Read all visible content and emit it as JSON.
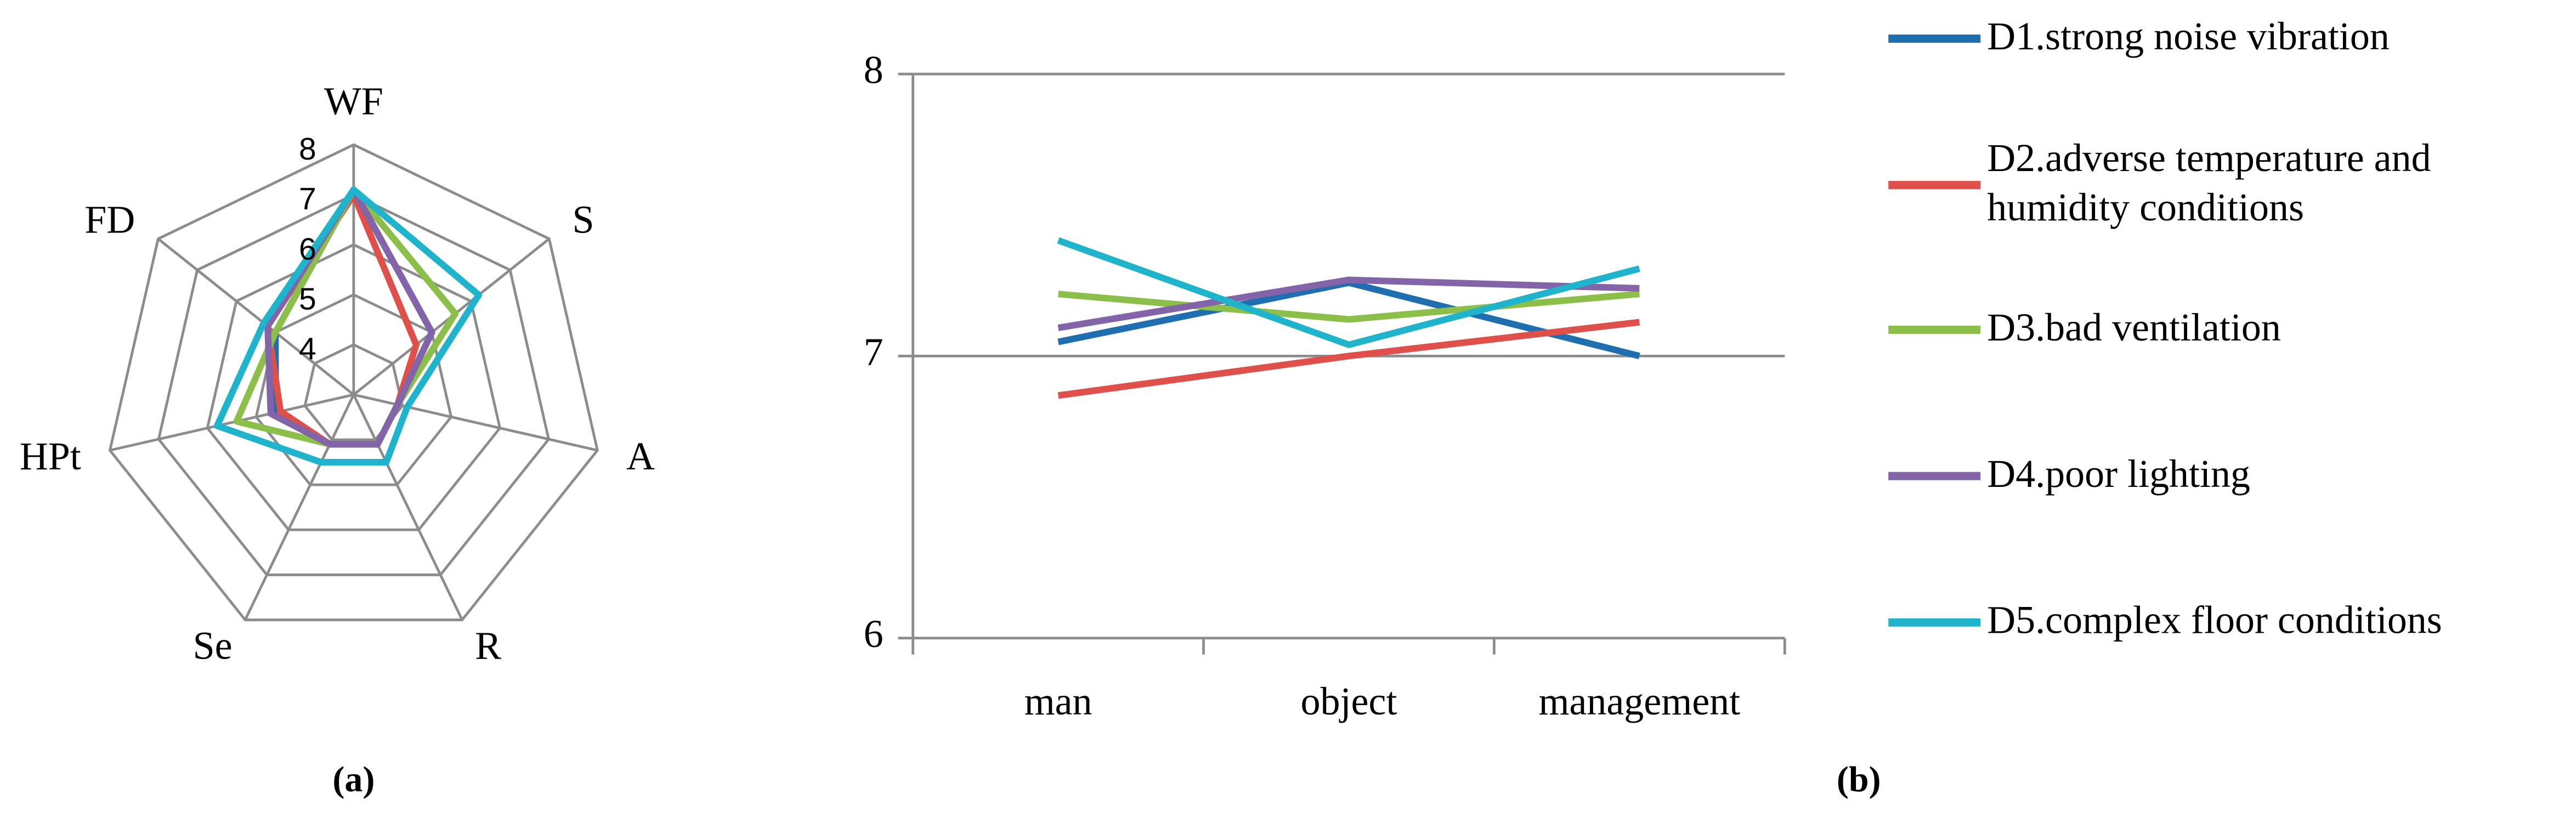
{
  "chart_data": [
    {
      "type": "radar",
      "caption": "(a)",
      "categories": [
        "WF",
        "S",
        "A",
        "R",
        "Se",
        "HPt",
        "FD"
      ],
      "rlim": [
        3,
        8
      ],
      "rticks": [
        4,
        5,
        6,
        7,
        8
      ],
      "series": [
        {
          "name": "D1.strong noise vibration",
          "color": "#1f6fb0",
          "values": [
            7.1,
            5.0,
            3.9,
            4.1,
            4.1,
            4.6,
            5.0
          ]
        },
        {
          "name": "D2.adverse temperature and humidity conditions",
          "color": "#e0504a",
          "values": [
            7.0,
            4.6,
            3.9,
            4.1,
            4.1,
            4.5,
            5.2
          ]
        },
        {
          "name": "D3.bad ventilation",
          "color": "#8cbf4a",
          "values": [
            7.1,
            5.6,
            3.9,
            4.1,
            4.1,
            5.4,
            5.0
          ]
        },
        {
          "name": "D4.poor lighting",
          "color": "#8464a8",
          "values": [
            7.1,
            5.0,
            3.9,
            4.1,
            4.1,
            4.7,
            5.2
          ]
        },
        {
          "name": "D5.complex floor conditions",
          "color": "#1fb3cc",
          "values": [
            7.1,
            6.2,
            4.1,
            4.5,
            4.5,
            5.8,
            5.3
          ]
        }
      ]
    },
    {
      "type": "line",
      "caption": "(b)",
      "categories": [
        "man",
        "object",
        "management"
      ],
      "ylim": [
        6,
        8
      ],
      "yticks": [
        6,
        7,
        8
      ],
      "grid": true,
      "series": [
        {
          "name": "D1.strong noise vibration",
          "color": "#1f6fb0",
          "values": [
            7.05,
            7.26,
            7.0
          ]
        },
        {
          "name": "D2.adverse temperature and humidity conditions",
          "color": "#e0504a",
          "values": [
            6.86,
            7.0,
            7.12
          ]
        },
        {
          "name": "D3.bad ventilation",
          "color": "#8cbf4a",
          "values": [
            7.22,
            7.13,
            7.22
          ]
        },
        {
          "name": "D4.poor lighting",
          "color": "#8464a8",
          "values": [
            7.1,
            7.27,
            7.24
          ]
        },
        {
          "name": "D5.complex floor conditions",
          "color": "#1fb3cc",
          "values": [
            7.41,
            7.04,
            7.31
          ]
        }
      ]
    }
  ]
}
